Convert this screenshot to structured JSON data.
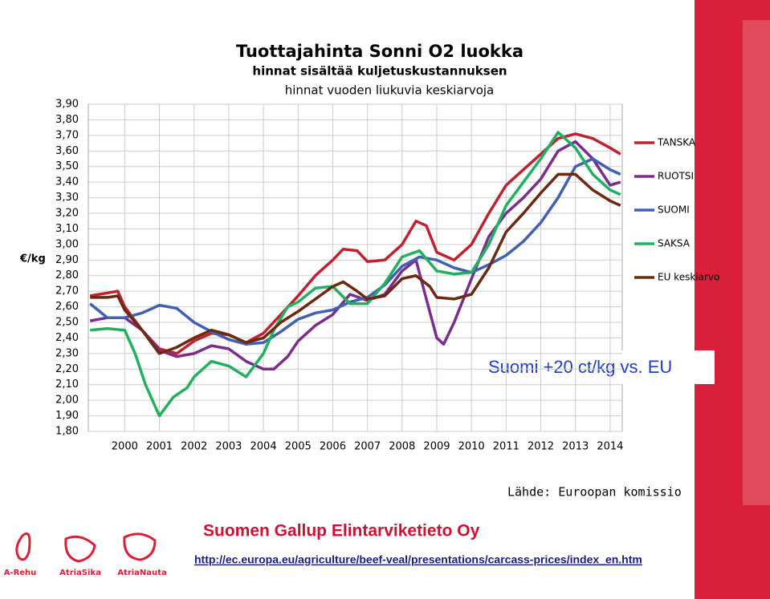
{
  "chart_data": {
    "type": "line",
    "title": "Tuottajahinta Sonni O2 luokka",
    "subtitle": [
      "hinnat sisältää kuljetuskustannuksen",
      "hinnat vuoden liukuvia keskiarvoja"
    ],
    "ylabel": "€/kg",
    "annotation": "Suomi +20 ct/kg vs. EU",
    "source": "Lähde: Euroopan komissio",
    "grid": true,
    "legend": "right",
    "xlim": [
      1998.95,
      2014.35
    ],
    "xticks": [
      2000,
      2001,
      2002,
      2003,
      2004,
      2005,
      2006,
      2007,
      2008,
      2009,
      2010,
      2011,
      2012,
      2013,
      2014
    ],
    "ylim": [
      1.8,
      3.9
    ],
    "yticks": [
      {
        "value": 1.8,
        "label": "1,80"
      },
      {
        "value": 1.9,
        "label": "1,90"
      },
      {
        "value": 2.0,
        "label": "2,00"
      },
      {
        "value": 2.1,
        "label": "2,10"
      },
      {
        "value": 2.2,
        "label": "2,20"
      },
      {
        "value": 2.3,
        "label": "2,30"
      },
      {
        "value": 2.4,
        "label": "2,40"
      },
      {
        "value": 2.5,
        "label": "2,50"
      },
      {
        "value": 2.6,
        "label": "2,60"
      },
      {
        "value": 2.7,
        "label": "2,70"
      },
      {
        "value": 2.8,
        "label": "2,80"
      },
      {
        "value": 2.9,
        "label": "2,90"
      },
      {
        "value": 3.0,
        "label": "3,00"
      },
      {
        "value": 3.1,
        "label": "3,10"
      },
      {
        "value": 3.2,
        "label": "3,20"
      },
      {
        "value": 3.3,
        "label": "3,30"
      },
      {
        "value": 3.4,
        "label": "3,40"
      },
      {
        "value": 3.5,
        "label": "3,50"
      },
      {
        "value": 3.6,
        "label": "3,60"
      },
      {
        "value": 3.7,
        "label": "3,70"
      },
      {
        "value": 3.8,
        "label": "3,80"
      },
      {
        "value": 3.9,
        "label": "3,90"
      }
    ],
    "series": [
      {
        "name": "TANSKA",
        "color": "#c0212f",
        "x": [
          1999,
          1999.8,
          2000,
          2000.5,
          2001,
          2001.5,
          2002,
          2002.5,
          2003,
          2003.5,
          2004,
          2004.5,
          2005,
          2005.5,
          2006,
          2006.3,
          2006.7,
          2007,
          2007.5,
          2008,
          2008.4,
          2008.7,
          2009,
          2009.5,
          2010,
          2010.5,
          2011,
          2011.5,
          2012,
          2012.5,
          2013,
          2013.5,
          2014,
          2014.3
        ],
        "values": [
          2.67,
          2.7,
          2.6,
          2.45,
          2.33,
          2.3,
          2.38,
          2.43,
          2.42,
          2.37,
          2.43,
          2.55,
          2.67,
          2.8,
          2.9,
          2.97,
          2.96,
          2.89,
          2.9,
          3.0,
          3.15,
          3.12,
          2.95,
          2.9,
          3.0,
          3.2,
          3.38,
          3.48,
          3.58,
          3.68,
          3.71,
          3.68,
          3.62,
          3.58
        ]
      },
      {
        "name": "RUOTSI",
        "color": "#7b2d8e",
        "x": [
          1999,
          1999.5,
          2000,
          2000.5,
          2001,
          2001.5,
          2002,
          2002.5,
          2003,
          2003.5,
          2004,
          2004.3,
          2004.7,
          2005,
          2005.5,
          2006,
          2006.5,
          2007,
          2007.5,
          2008,
          2008.4,
          2008.7,
          2009,
          2009.2,
          2009.5,
          2010,
          2010.5,
          2011,
          2011.5,
          2012,
          2012.5,
          2013,
          2013.5,
          2014,
          2014.3
        ],
        "values": [
          2.51,
          2.53,
          2.53,
          2.45,
          2.32,
          2.28,
          2.3,
          2.35,
          2.33,
          2.25,
          2.2,
          2.2,
          2.28,
          2.38,
          2.48,
          2.55,
          2.68,
          2.64,
          2.68,
          2.83,
          2.9,
          2.65,
          2.4,
          2.36,
          2.5,
          2.78,
          3.05,
          3.2,
          3.3,
          3.42,
          3.6,
          3.66,
          3.55,
          3.38,
          3.4
        ]
      },
      {
        "name": "SUOMI",
        "color": "#4060b0",
        "x": [
          1999,
          1999.5,
          2000,
          2000.5,
          2001,
          2001.5,
          2002,
          2002.5,
          2003,
          2003.5,
          2004,
          2004.5,
          2005,
          2005.5,
          2006,
          2006.5,
          2007,
          2007.5,
          2008,
          2008.5,
          2009,
          2009.5,
          2010,
          2010.5,
          2011,
          2011.5,
          2012,
          2012.5,
          2013,
          2013.5,
          2014,
          2014.3
        ],
        "values": [
          2.62,
          2.53,
          2.53,
          2.56,
          2.61,
          2.59,
          2.5,
          2.44,
          2.39,
          2.36,
          2.37,
          2.44,
          2.52,
          2.56,
          2.58,
          2.63,
          2.66,
          2.74,
          2.86,
          2.92,
          2.9,
          2.85,
          2.82,
          2.87,
          2.93,
          3.02,
          3.14,
          3.3,
          3.5,
          3.55,
          3.48,
          3.45
        ]
      },
      {
        "name": "SAKSA",
        "color": "#20b060",
        "x": [
          1999,
          1999.5,
          2000,
          2000.3,
          2000.6,
          2001,
          2001.4,
          2001.8,
          2002,
          2002.5,
          2003,
          2003.5,
          2004,
          2004.3,
          2004.7,
          2005,
          2005.5,
          2006,
          2006.5,
          2007,
          2007.5,
          2008,
          2008.5,
          2009,
          2009.5,
          2010,
          2010.5,
          2011,
          2011.5,
          2012,
          2012.5,
          2013,
          2013.5,
          2014,
          2014.3
        ],
        "values": [
          2.45,
          2.46,
          2.45,
          2.3,
          2.1,
          1.9,
          2.02,
          2.08,
          2.15,
          2.25,
          2.22,
          2.15,
          2.3,
          2.45,
          2.6,
          2.63,
          2.72,
          2.73,
          2.62,
          2.62,
          2.75,
          2.92,
          2.96,
          2.83,
          2.81,
          2.82,
          3.0,
          3.25,
          3.4,
          3.55,
          3.72,
          3.62,
          3.45,
          3.35,
          3.32
        ]
      },
      {
        "name": "EU keskiarvo",
        "color": "#6b2a10",
        "x": [
          1999,
          1999.5,
          1999.8,
          2000,
          2000.5,
          2001,
          2001.5,
          2002,
          2002.5,
          2003,
          2003.5,
          2004,
          2004.5,
          2005,
          2005.5,
          2006,
          2006.3,
          2006.7,
          2007,
          2007.5,
          2008,
          2008.4,
          2008.8,
          2009,
          2009.5,
          2010,
          2010.5,
          2011,
          2011.5,
          2012,
          2012.5,
          2013,
          2013.5,
          2014,
          2014.3
        ],
        "values": [
          2.66,
          2.66,
          2.67,
          2.58,
          2.45,
          2.3,
          2.34,
          2.4,
          2.45,
          2.42,
          2.37,
          2.4,
          2.5,
          2.57,
          2.65,
          2.73,
          2.76,
          2.7,
          2.65,
          2.67,
          2.78,
          2.8,
          2.73,
          2.66,
          2.65,
          2.68,
          2.85,
          3.08,
          3.2,
          3.33,
          3.45,
          3.45,
          3.35,
          3.28,
          3.25
        ]
      }
    ]
  },
  "slide": {
    "company": "Suomen Gallup Elintarviketieto Oy",
    "url": "http://ec.europa.eu/agriculture/beef-veal/presentations/carcass-prices/index_en.htm",
    "logos": [
      "A-Rehu",
      "AtriaSika",
      "AtriaNauta"
    ]
  }
}
